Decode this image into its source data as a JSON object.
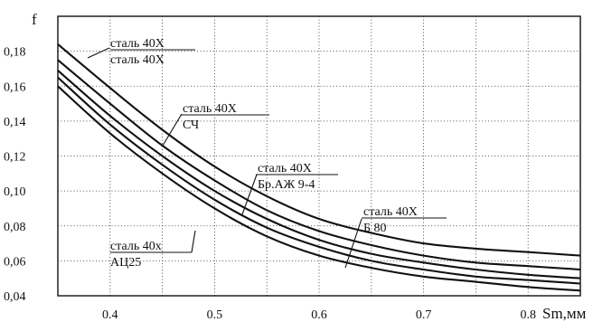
{
  "chart_data": {
    "type": "line",
    "ylabel": "f",
    "xlabel": "Sm,мм",
    "xlim": [
      0.35,
      0.85
    ],
    "ylim": [
      0.04,
      0.2
    ],
    "grid": true,
    "x_ticks": [
      "0.4",
      "0.5",
      "0.6",
      "0.7",
      "0.8"
    ],
    "y_ticks": [
      "0,04",
      "0,06",
      "0,08",
      "0,10",
      "0,12",
      "0,14",
      "0,16",
      "0,18"
    ],
    "x": [
      0.35,
      0.4,
      0.45,
      0.5,
      0.55,
      0.6,
      0.65,
      0.7,
      0.75,
      0.8,
      0.85
    ],
    "series": [
      {
        "name": "сталь 40Х / сталь 40Х",
        "label_top": "сталь 40Х",
        "label_bottom": "сталь 40Х",
        "values": [
          0.184,
          0.159,
          0.135,
          0.114,
          0.097,
          0.084,
          0.076,
          0.07,
          0.067,
          0.065,
          0.063
        ]
      },
      {
        "name": "сталь 40Х / СЧ",
        "label_top": "сталь 40Х",
        "label_bottom": "СЧ",
        "values": [
          0.175,
          0.15,
          0.126,
          0.106,
          0.089,
          0.077,
          0.069,
          0.063,
          0.059,
          0.057,
          0.055
        ]
      },
      {
        "name": "сталь 40Х / Бр.АЖ 9-4",
        "label_top": "сталь 40Х",
        "label_bottom": "Бр.АЖ 9-4",
        "values": [
          0.169,
          0.143,
          0.12,
          0.1,
          0.084,
          0.072,
          0.064,
          0.059,
          0.055,
          0.052,
          0.05
        ]
      },
      {
        "name": "сталь 40Х / Б 80",
        "label_top": "сталь 40Х",
        "label_bottom": "Б 80",
        "values": [
          0.165,
          0.138,
          0.115,
          0.095,
          0.079,
          0.068,
          0.06,
          0.055,
          0.051,
          0.049,
          0.047
        ]
      },
      {
        "name": "сталь 40х / АЦ25",
        "label_top": "сталь 40х",
        "label_bottom": "АЦ25",
        "values": [
          0.16,
          0.133,
          0.11,
          0.09,
          0.074,
          0.063,
          0.056,
          0.051,
          0.048,
          0.045,
          0.043
        ]
      }
    ]
  }
}
